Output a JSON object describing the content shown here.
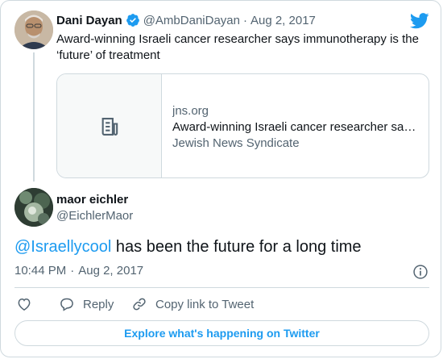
{
  "original_tweet": {
    "author_name": "Dani Dayan",
    "handle": "@AmbDaniDayan",
    "separator": "·",
    "date": "Aug 2, 2017",
    "text": "Award-winning Israeli cancer researcher says immunotherapy is the ‘future’ of treatment"
  },
  "link_card": {
    "domain": "jns.org",
    "title": "Award-winning Israeli cancer researcher sa…",
    "source": "Jewish News Syndicate"
  },
  "reply_tweet": {
    "author_name": "maor eichler",
    "handle": "@EichlerMaor",
    "mention": "@Israellycool",
    "text_rest": " has been the future for a long time",
    "time": "10:44 PM",
    "separator": "·",
    "date": "Aug 2, 2017"
  },
  "actions": {
    "reply_label": "Reply",
    "copy_label": "Copy link to Tweet"
  },
  "explore_label": "Explore what's happening on Twitter",
  "colors": {
    "accent": "#1d9bf0",
    "muted": "#536471",
    "border": "#cfd9de"
  },
  "icons": {
    "brand": "twitter-bird-icon",
    "verified": "verified-badge-icon",
    "article": "article-icon",
    "info": "info-icon",
    "like": "heart-icon",
    "reply": "reply-bubble-icon",
    "copy": "link-icon"
  }
}
